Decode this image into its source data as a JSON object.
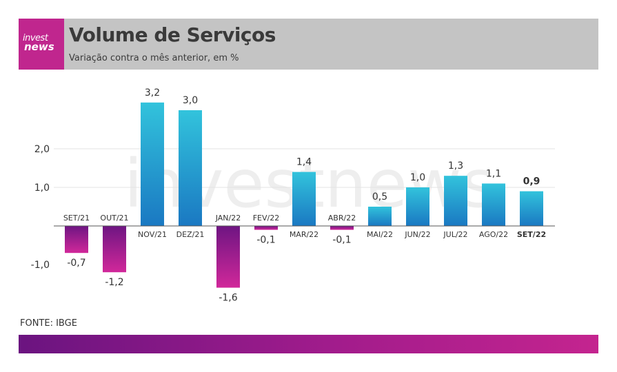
{
  "header": {
    "logo_line1": "invest",
    "logo_line2": "news",
    "title": "Volume de Serviços",
    "subtitle": "Variação contra o mês anterior, em %"
  },
  "watermark": "investnews",
  "source": "FONTE: IBGE",
  "colors": {
    "positive_top": "#32c3dc",
    "positive_bottom": "#1a78c2",
    "negative_top": "#6e1582",
    "negative_bottom": "#d1289a",
    "header_bg": "#c4c4c4",
    "logo_bg": "#c0268e"
  },
  "chart_data": {
    "type": "bar",
    "title": "Volume de Serviços",
    "subtitle": "Variação contra o mês anterior, em %",
    "categories": [
      "SET/21",
      "OUT/21",
      "NOV/21",
      "DEZ/21",
      "JAN/22",
      "FEV/22",
      "MAR/22",
      "ABR/22",
      "MAI/22",
      "JUN/22",
      "JUL/22",
      "AGO/22",
      "SET/22"
    ],
    "values": [
      -0.7,
      -1.2,
      3.2,
      3.0,
      -1.6,
      -0.1,
      1.4,
      -0.1,
      0.5,
      1.0,
      1.3,
      1.1,
      0.9
    ],
    "value_labels": [
      "-0,7",
      "-1,2",
      "3,2",
      "3,0",
      "-1,6",
      "-0,1",
      "1,4",
      "-0,1",
      "0,5",
      "1,0",
      "1,3",
      "1,1",
      "0,9"
    ],
    "highlight": "SET/22",
    "yticks": [
      2.0,
      1.0,
      -1.0
    ],
    "ytick_labels": [
      "2,0",
      "1,0",
      "-1,0"
    ],
    "ylim": [
      -1.6,
      3.2
    ],
    "grid": true,
    "xlabel": "",
    "ylabel": ""
  }
}
